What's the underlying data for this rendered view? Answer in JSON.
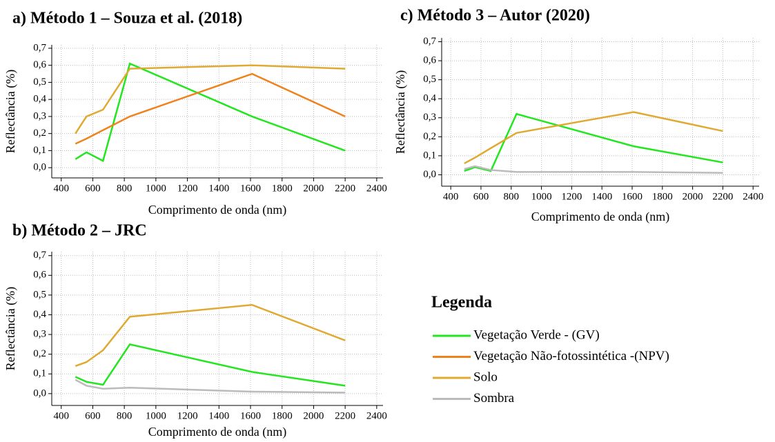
{
  "chart_data": [
    {
      "type": "line",
      "title": "a) Método 1 – Souza et al. (2018)",
      "xlabel": "Comprimento de onda (nm)",
      "ylabel": "Reflectância (%)",
      "x": [
        490,
        560,
        665,
        835,
        1610,
        2200
      ],
      "series": [
        {
          "name": "Vegetação Verde - (GV)",
          "color": "#22e61e",
          "values": [
            0.05,
            0.09,
            0.04,
            0.61,
            0.3,
            0.1
          ]
        },
        {
          "name": "Vegetação Não-fotossintética -(NPV)",
          "color": "#f0821e",
          "values": [
            0.14,
            0.17,
            0.22,
            0.3,
            0.55,
            0.3
          ]
        },
        {
          "name": "Solo",
          "color": "#e0aa32",
          "values": [
            0.2,
            0.3,
            0.34,
            0.58,
            0.6,
            0.58
          ]
        }
      ],
      "xlim": [
        340,
        2440
      ],
      "ylim": [
        -0.06,
        0.72
      ],
      "xticks": [
        400,
        600,
        800,
        1000,
        1200,
        1400,
        1600,
        1800,
        2000,
        2200,
        2400
      ],
      "yticks": [
        {
          "value": 0,
          "label": "0,0"
        },
        {
          "value": 0.1,
          "label": "0,1"
        },
        {
          "value": 0.2,
          "label": "0,2"
        },
        {
          "value": 0.3,
          "label": "0,3"
        },
        {
          "value": 0.4,
          "label": "0,4"
        },
        {
          "value": 0.5,
          "label": "0,5"
        },
        {
          "value": 0.6,
          "label": "0,6"
        },
        {
          "value": 0.7,
          "label": "0,7"
        }
      ],
      "grid": true
    },
    {
      "type": "line",
      "title": "b) Método 2 – JRC",
      "xlabel": "Comprimento de onda (nm)",
      "ylabel": "Reflectância (%)",
      "x": [
        490,
        560,
        665,
        835,
        1610,
        2200
      ],
      "series": [
        {
          "name": "Vegetação Verde - (GV)",
          "color": "#22e61e",
          "values": [
            0.085,
            0.06,
            0.045,
            0.25,
            0.11,
            0.04
          ]
        },
        {
          "name": "Solo",
          "color": "#e0aa32",
          "values": [
            0.14,
            0.16,
            0.22,
            0.39,
            0.45,
            0.27
          ]
        },
        {
          "name": "Sombra",
          "color": "#bbbbbb",
          "values": [
            0.07,
            0.04,
            0.025,
            0.03,
            0.01,
            0.005
          ]
        }
      ],
      "xlim": [
        340,
        2440
      ],
      "ylim": [
        -0.06,
        0.72
      ],
      "xticks": [
        400,
        600,
        800,
        1000,
        1200,
        1400,
        1600,
        1800,
        2000,
        2200,
        2400
      ],
      "yticks": [
        {
          "value": 0,
          "label": "0,0"
        },
        {
          "value": 0.1,
          "label": "0,1"
        },
        {
          "value": 0.2,
          "label": "0,2"
        },
        {
          "value": 0.3,
          "label": "0,3"
        },
        {
          "value": 0.4,
          "label": "0,4"
        },
        {
          "value": 0.5,
          "label": "0,5"
        },
        {
          "value": 0.6,
          "label": "0,6"
        },
        {
          "value": 0.7,
          "label": "0,7"
        }
      ],
      "grid": true
    },
    {
      "type": "line",
      "title": "c) Método 3 – Autor (2020)",
      "xlabel": "Comprimento de onda (nm)",
      "ylabel": "Reflectância (%)",
      "x": [
        490,
        560,
        665,
        835,
        1610,
        2200
      ],
      "series": [
        {
          "name": "Vegetação Verde - (GV)",
          "color": "#22e61e",
          "values": [
            0.02,
            0.04,
            0.02,
            0.32,
            0.15,
            0.065
          ]
        },
        {
          "name": "Solo",
          "color": "#e0aa32",
          "values": [
            0.06,
            0.09,
            0.14,
            0.22,
            0.33,
            0.23
          ]
        },
        {
          "name": "Sombra",
          "color": "#bbbbbb",
          "values": [
            0.03,
            0.045,
            0.025,
            0.015,
            0.015,
            0.01
          ]
        }
      ],
      "xlim": [
        340,
        2440
      ],
      "ylim": [
        -0.06,
        0.72
      ],
      "xticks": [
        400,
        600,
        800,
        1000,
        1200,
        1400,
        1600,
        1800,
        2000,
        2200,
        2400
      ],
      "yticks": [
        {
          "value": 0,
          "label": "0,0"
        },
        {
          "value": 0.1,
          "label": "0,1"
        },
        {
          "value": 0.2,
          "label": "0,2"
        },
        {
          "value": 0.3,
          "label": "0,3"
        },
        {
          "value": 0.4,
          "label": "0,4"
        },
        {
          "value": 0.5,
          "label": "0,5"
        },
        {
          "value": 0.6,
          "label": "0,6"
        },
        {
          "value": 0.7,
          "label": "0,7"
        }
      ],
      "grid": true
    }
  ],
  "legend_title": "Legenda"
}
